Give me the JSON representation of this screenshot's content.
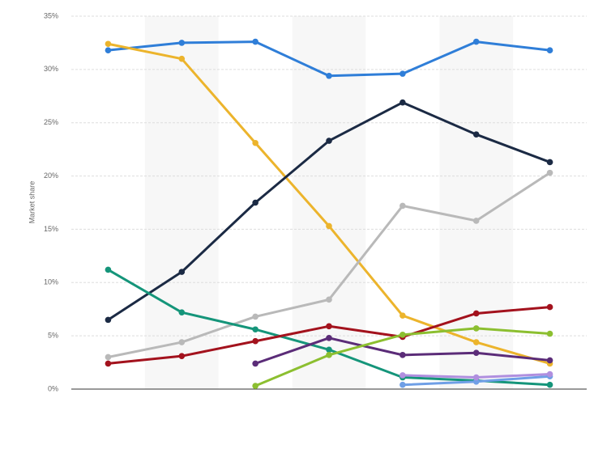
{
  "chart_data": {
    "type": "line",
    "ylabel": "Market share",
    "categories": [
      null,
      null,
      null,
      null,
      null,
      null,
      null
    ],
    "ylim": [
      0,
      35
    ],
    "yticks": [
      {
        "value": 0,
        "label": "0%"
      },
      {
        "value": 5,
        "label": "5%"
      },
      {
        "value": 10,
        "label": "10%"
      },
      {
        "value": 15,
        "label": "15%"
      },
      {
        "value": 20,
        "label": "20%"
      },
      {
        "value": 25,
        "label": "25%"
      },
      {
        "value": 30,
        "label": "30%"
      },
      {
        "value": 35,
        "label": "35%"
      }
    ],
    "grid": true,
    "series": [
      {
        "color": "#2f7ed8",
        "values": [
          31.8,
          32.5,
          32.6,
          29.4,
          29.6,
          32.6,
          31.8
        ]
      },
      {
        "color": "#ecb42c",
        "values": [
          32.4,
          31.0,
          23.1,
          15.3,
          6.9,
          4.4,
          2.4
        ]
      },
      {
        "color": "#1b2a44",
        "values": [
          6.5,
          11.0,
          17.5,
          23.3,
          26.9,
          23.9,
          21.3
        ]
      },
      {
        "color": "#b9b9b9",
        "values": [
          3.0,
          4.4,
          6.8,
          8.4,
          17.2,
          15.8,
          20.3
        ]
      },
      {
        "color": "#15957a",
        "values": [
          11.2,
          7.2,
          5.6,
          3.7,
          1.1,
          0.8,
          0.4
        ]
      },
      {
        "color": "#a3121d",
        "values": [
          2.4,
          3.1,
          4.5,
          5.9,
          4.9,
          7.1,
          7.7
        ]
      },
      {
        "color": "#5b2c78",
        "values": [
          null,
          null,
          2.4,
          4.8,
          3.2,
          3.4,
          2.7
        ]
      },
      {
        "color": "#8cbf30",
        "values": [
          null,
          null,
          0.3,
          3.2,
          5.1,
          5.7,
          5.2
        ]
      },
      {
        "color": "#6f9fe6",
        "values": [
          null,
          null,
          null,
          null,
          0.4,
          0.7,
          1.2
        ]
      },
      {
        "color": "#b08fdf",
        "values": [
          null,
          null,
          null,
          null,
          1.3,
          1.1,
          1.4
        ]
      }
    ]
  }
}
